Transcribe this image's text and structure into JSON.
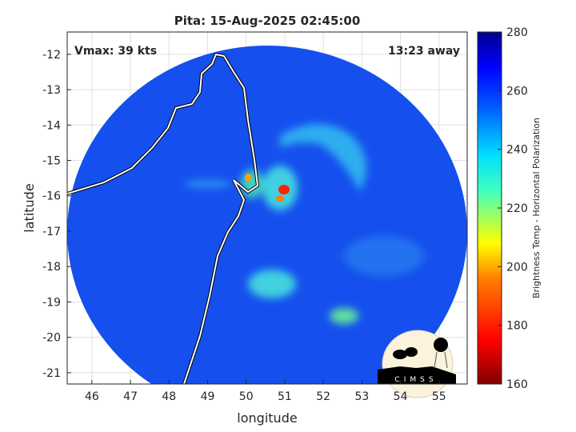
{
  "chart_data": {
    "type": "heatmap",
    "title": "Pita: 15-Aug-2025 02:45:00",
    "xlabel": "longitude",
    "ylabel": "latitude",
    "xlim": [
      45.36,
      55.73
    ],
    "ylim": [
      -21.32,
      -11.37
    ],
    "xticks": [
      "46",
      "47",
      "48",
      "49",
      "50",
      "51",
      "52",
      "53",
      "54",
      "55"
    ],
    "xtick_values": [
      46,
      47,
      48,
      49,
      50,
      51,
      52,
      53,
      54,
      55
    ],
    "yticks": [
      "-12",
      "-13",
      "-14",
      "-15",
      "-16",
      "-17",
      "-18",
      "-19",
      "-20",
      "-21"
    ],
    "ytick_values": [
      -12,
      -13,
      -14,
      -15,
      -16,
      -17,
      -18,
      -19,
      -20,
      -21
    ],
    "grid": true,
    "annotations": {
      "vmax": "Vmax: 39 kts",
      "distance": "13:23 away"
    },
    "colorbar": {
      "label": "Brightness Temp - Horizontal Polarization",
      "range": [
        160,
        280
      ],
      "ticks": [
        "160",
        "180",
        "200",
        "220",
        "240",
        "260",
        "280"
      ],
      "tick_values": [
        160,
        180,
        200,
        220,
        240,
        260,
        280
      ],
      "colormap": "jet"
    },
    "storm_center": {
      "lon": 51.0,
      "lat": -15.9,
      "min_temp": 175
    },
    "logo": "CIMSS"
  }
}
